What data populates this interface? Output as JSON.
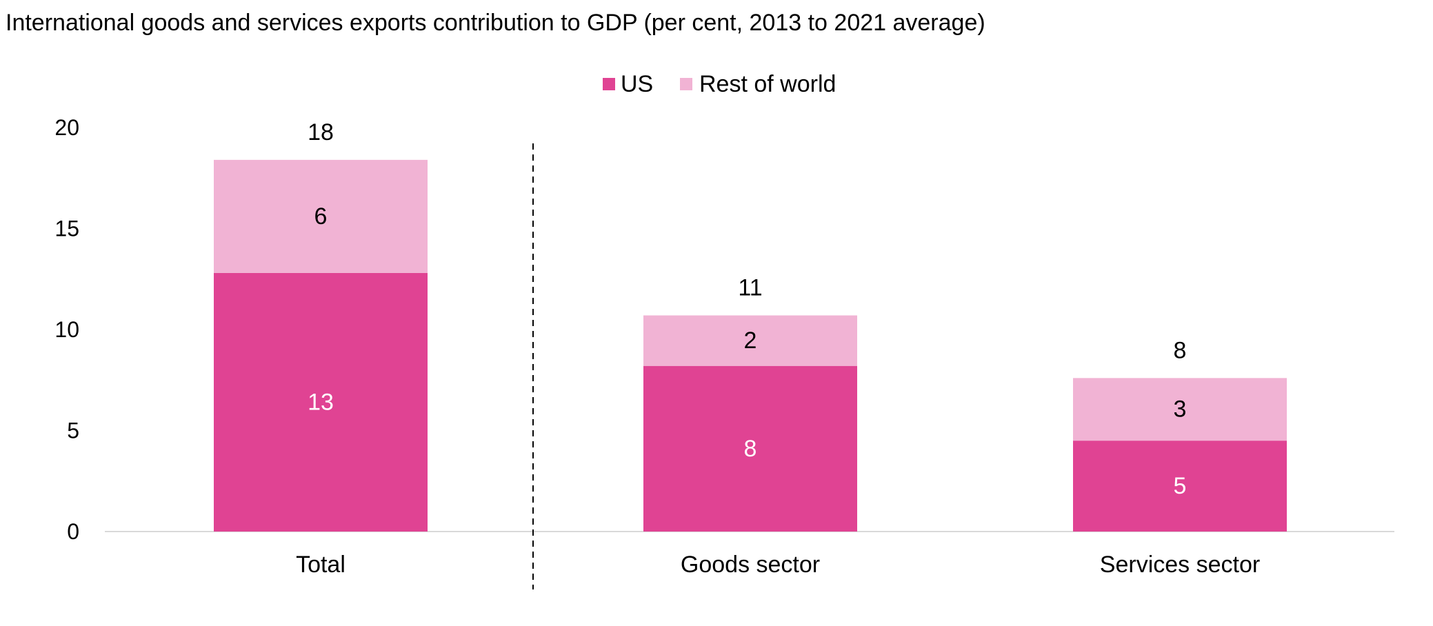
{
  "chart_data": {
    "type": "bar",
    "stacked": true,
    "title": "International goods and services exports contribution to GDP (per cent, 2013 to 2021 average)",
    "categories": [
      "Total",
      "Goods sector",
      "Services sector"
    ],
    "series": [
      {
        "name": "US",
        "color": "#E04393",
        "values": [
          12.8,
          8.2,
          4.5
        ],
        "labels": [
          "13",
          "8",
          "5"
        ],
        "label_color": "#ffffff"
      },
      {
        "name": "Rest of world",
        "color": "#F1B3D4",
        "values": [
          5.6,
          2.5,
          3.1
        ],
        "labels": [
          "6",
          "2",
          "3"
        ],
        "label_color": "#000000"
      }
    ],
    "totals": [
      "18",
      "11",
      "8"
    ],
    "ylim": [
      0,
      20
    ],
    "yticks": [
      0,
      5,
      10,
      15,
      20
    ],
    "xlabel": "",
    "ylabel": "",
    "legend": "top-center",
    "grid": false,
    "separator_after_category": 0
  }
}
